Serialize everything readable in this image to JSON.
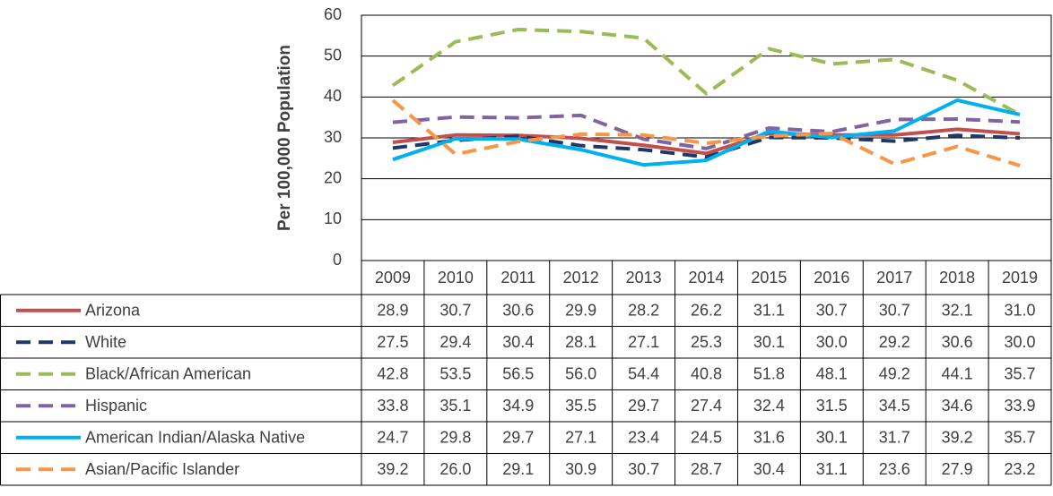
{
  "chart_data": {
    "type": "line",
    "y_label": "Per 100,000 Population",
    "categories": [
      "2009",
      "2010",
      "2011",
      "2012",
      "2013",
      "2014",
      "2015",
      "2016",
      "2017",
      "2018",
      "2019"
    ],
    "ylim": [
      0,
      60
    ],
    "yticks": [
      0,
      10,
      20,
      30,
      40,
      50,
      60
    ],
    "grid": true,
    "series": [
      {
        "name": "Arizona",
        "color": "#c0504d",
        "dashed": false,
        "values": [
          28.9,
          30.7,
          30.6,
          29.9,
          28.2,
          26.2,
          31.1,
          30.7,
          30.7,
          32.1,
          31.0
        ],
        "value_labels": [
          "28.9",
          "30.7",
          "30.6",
          "29.9",
          "28.2",
          "26.2",
          "31.1",
          "30.7",
          "30.7",
          "32.1",
          "31.0"
        ]
      },
      {
        "name": "White",
        "color": "#1f3864",
        "dashed": true,
        "values": [
          27.5,
          29.4,
          30.4,
          28.1,
          27.1,
          25.3,
          30.1,
          30.0,
          29.2,
          30.6,
          30.0
        ],
        "value_labels": [
          "27.5",
          "29.4",
          "30.4",
          "28.1",
          "27.1",
          "25.3",
          "30.1",
          "30.0",
          "29.2",
          "30.6",
          "30.0"
        ]
      },
      {
        "name": "Black/African American",
        "color": "#9bbb59",
        "dashed": true,
        "values": [
          42.8,
          53.5,
          56.5,
          56.0,
          54.4,
          40.8,
          51.8,
          48.1,
          49.2,
          44.1,
          35.7
        ],
        "value_labels": [
          "42.8",
          "53.5",
          "56.5",
          "56.0",
          "54.4",
          "40.8",
          "51.8",
          "48.1",
          "49.2",
          "44.1",
          "35.7"
        ]
      },
      {
        "name": "Hispanic",
        "color": "#8064a2",
        "dashed": true,
        "values": [
          33.8,
          35.1,
          34.9,
          35.5,
          29.7,
          27.4,
          32.4,
          31.5,
          34.5,
          34.6,
          33.9
        ],
        "value_labels": [
          "33.8",
          "35.1",
          "34.9",
          "35.5",
          "29.7",
          "27.4",
          "32.4",
          "31.5",
          "34.5",
          "34.6",
          "33.9"
        ]
      },
      {
        "name": "American Indian/Alaska Native",
        "color": "#00b0f0",
        "dashed": false,
        "values": [
          24.7,
          29.8,
          29.7,
          27.1,
          23.4,
          24.5,
          31.6,
          30.1,
          31.7,
          39.2,
          35.7
        ],
        "value_labels": [
          "24.7",
          "29.8",
          "29.7",
          "27.1",
          "23.4",
          "24.5",
          "31.6",
          "30.1",
          "31.7",
          "39.2",
          "35.7"
        ]
      },
      {
        "name": "Asian/Pacific Islander",
        "color": "#f79646",
        "dashed": true,
        "values": [
          39.2,
          26.0,
          29.1,
          30.9,
          30.7,
          28.7,
          30.4,
          31.1,
          23.6,
          27.9,
          23.2
        ],
        "value_labels": [
          "39.2",
          "26.0",
          "29.1",
          "30.9",
          "30.7",
          "28.7",
          "30.4",
          "31.1",
          "23.6",
          "27.9",
          "23.2"
        ]
      }
    ]
  }
}
